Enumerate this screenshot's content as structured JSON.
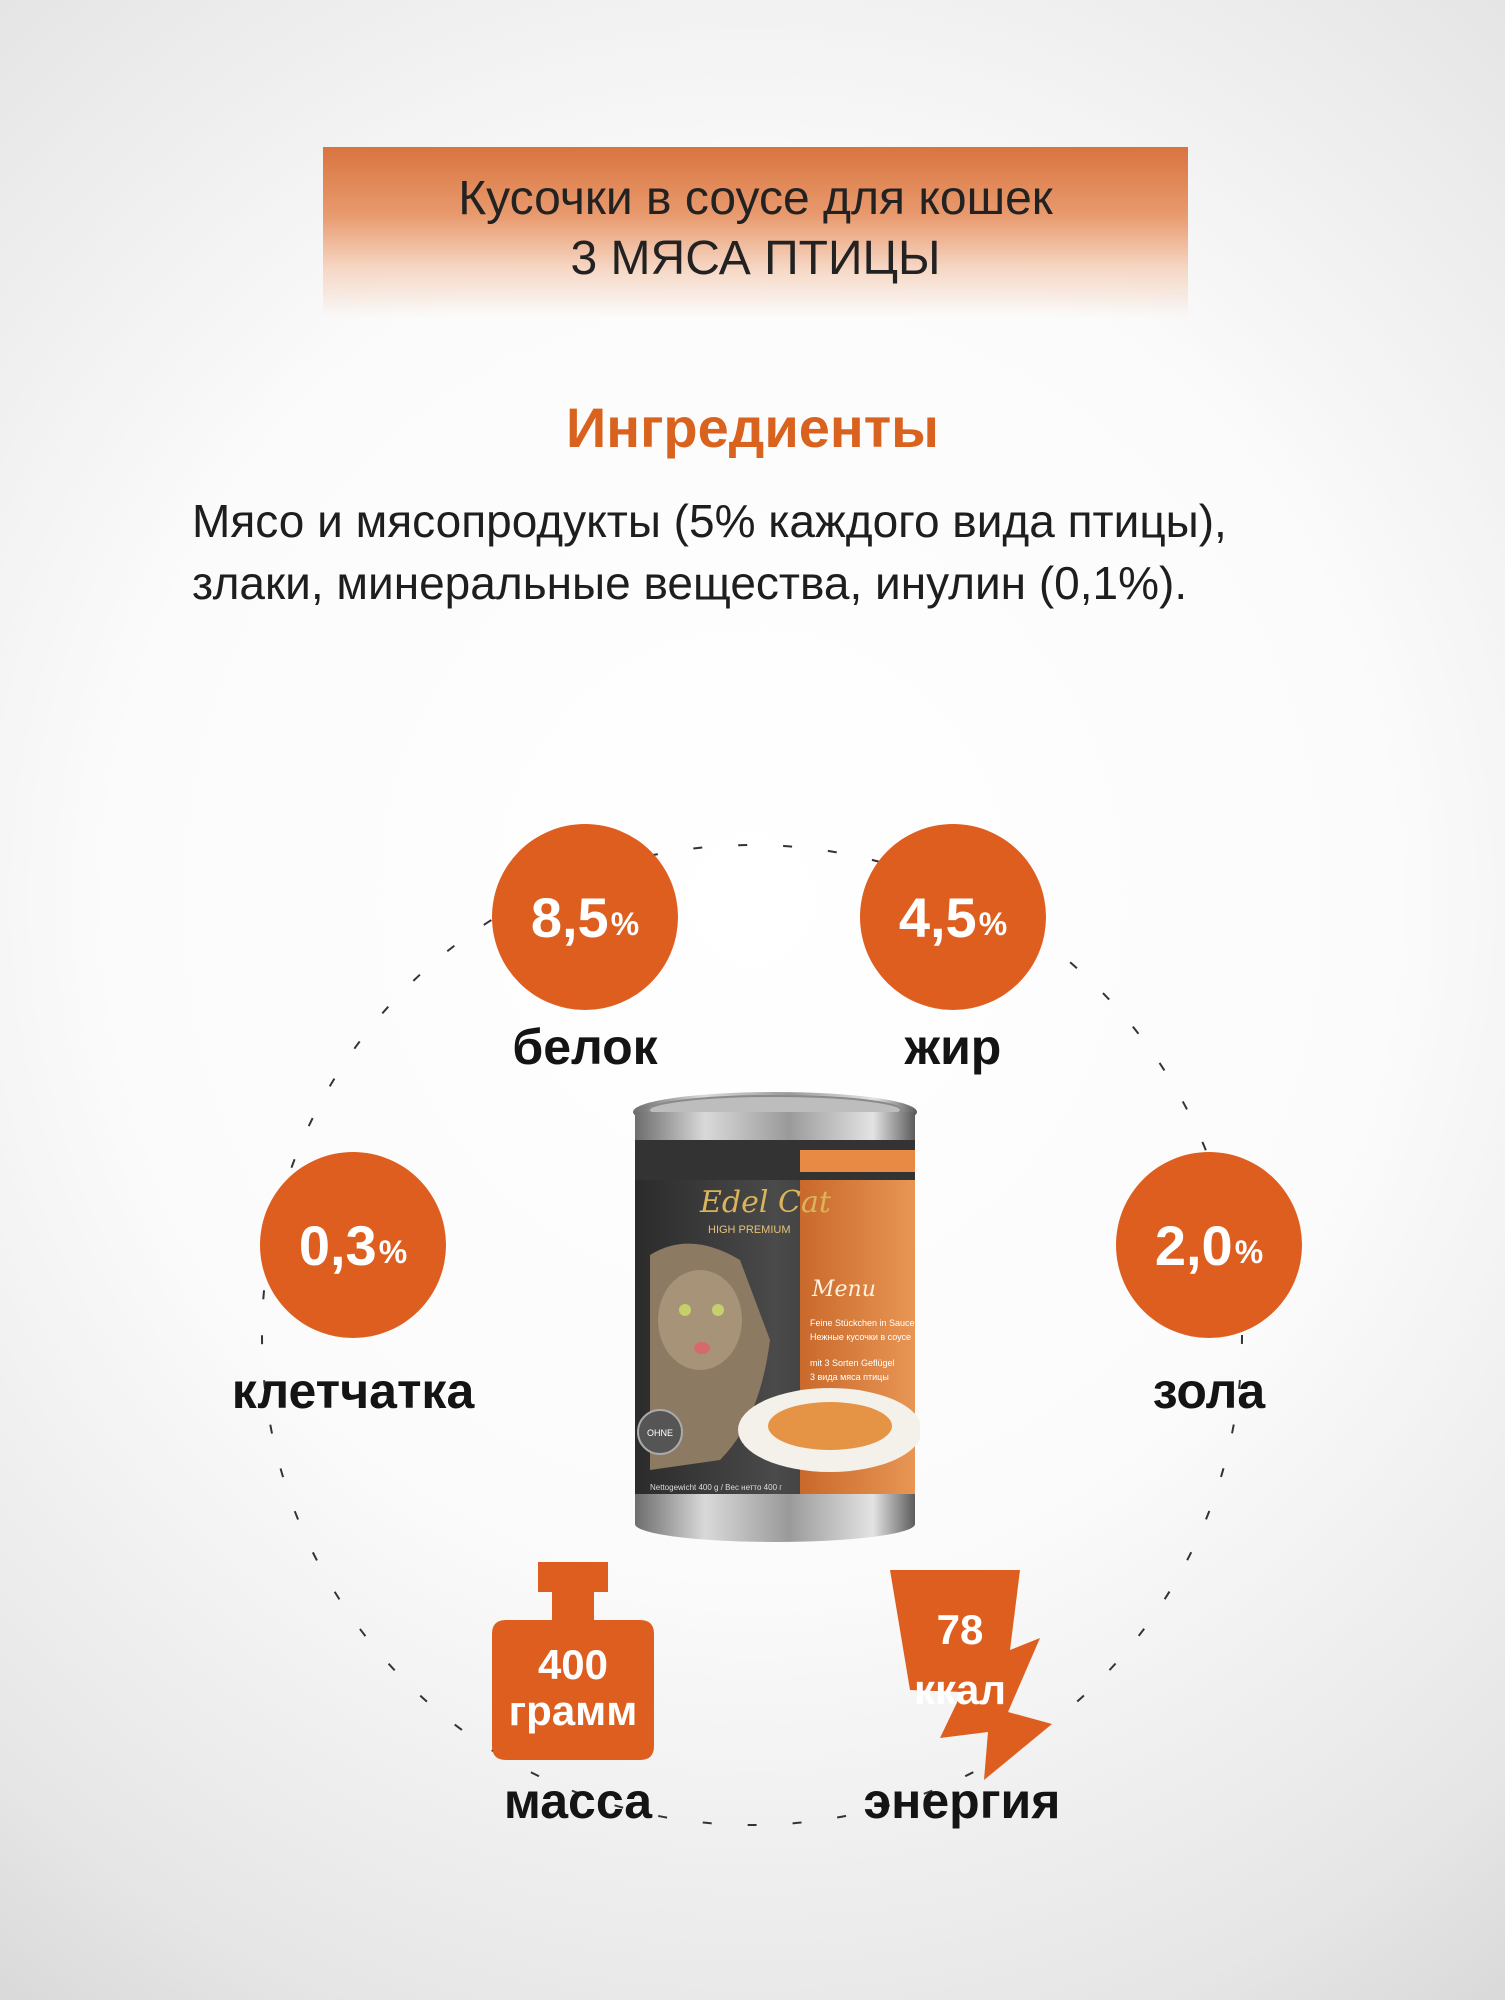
{
  "banner": {
    "line1": "Кусочки в соусе для кошек",
    "line2": "3 МЯСА ПТИЦЫ"
  },
  "ingredients": {
    "title": "Ингредиенты",
    "line1": "Мясо и мясопродукты (5% каждого вида птицы),",
    "line2": "злаки, минеральные вещества, инулин (0,1%)."
  },
  "nutrients": {
    "protein": {
      "value": "8,5",
      "unit": "%",
      "label": "белок"
    },
    "fat": {
      "value": "4,5",
      "unit": "%",
      "label": "жир"
    },
    "fiber": {
      "value": "0,3",
      "unit": "%",
      "label": "клетчатка"
    },
    "ash": {
      "value": "2,0",
      "unit": "%",
      "label": "зола"
    }
  },
  "mass": {
    "value": "400",
    "unit": "грамм",
    "label": "масса"
  },
  "energy": {
    "value": "78",
    "unit": "ккал",
    "label": "энергия"
  },
  "product": {
    "brand": "Edel Cat",
    "tagline": "HIGH PREMIUM",
    "menu": "Menu",
    "desc1": "Feine Stückchen in Sauce",
    "desc2": "Нежные кусочки в соусе",
    "desc3": "mit 3 Sorten Geflügel",
    "desc4": "3 вида мяса птицы",
    "badge": "OHNE",
    "net": "Nettogewicht 400 g / Вес нетто 400 г"
  },
  "colors": {
    "accent": "#dd5e1e",
    "title_orange": "#d9631e"
  }
}
